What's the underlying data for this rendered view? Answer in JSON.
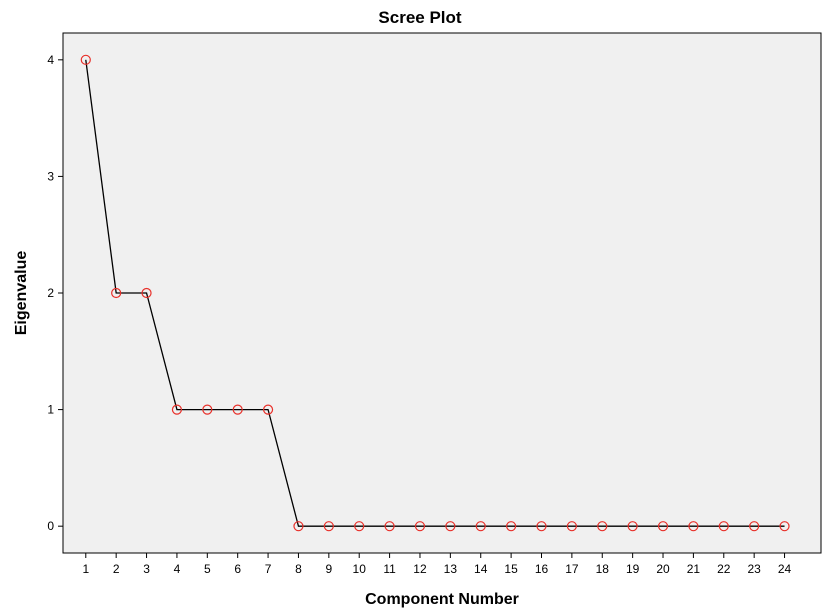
{
  "chart_data": {
    "type": "line",
    "title": "Scree Plot",
    "xlabel": "Component Number",
    "ylabel": "Eigenvalue",
    "x": [
      1,
      2,
      3,
      4,
      5,
      6,
      7,
      8,
      9,
      10,
      11,
      12,
      13,
      14,
      15,
      16,
      17,
      18,
      19,
      20,
      21,
      22,
      23,
      24
    ],
    "y": [
      4,
      2,
      2,
      1,
      1,
      1,
      1,
      0,
      0,
      0,
      0,
      0,
      0,
      0,
      0,
      0,
      0,
      0,
      0,
      0,
      0,
      0,
      0,
      0
    ],
    "xlim": [
      0.25,
      25.2
    ],
    "ylim": [
      -0.23,
      4.23
    ],
    "yticks": [
      0,
      1,
      2,
      3,
      4
    ],
    "grid": false,
    "line_color": "#000000",
    "marker_color": "#e8302a",
    "plot_background": "#f0f0f0"
  }
}
